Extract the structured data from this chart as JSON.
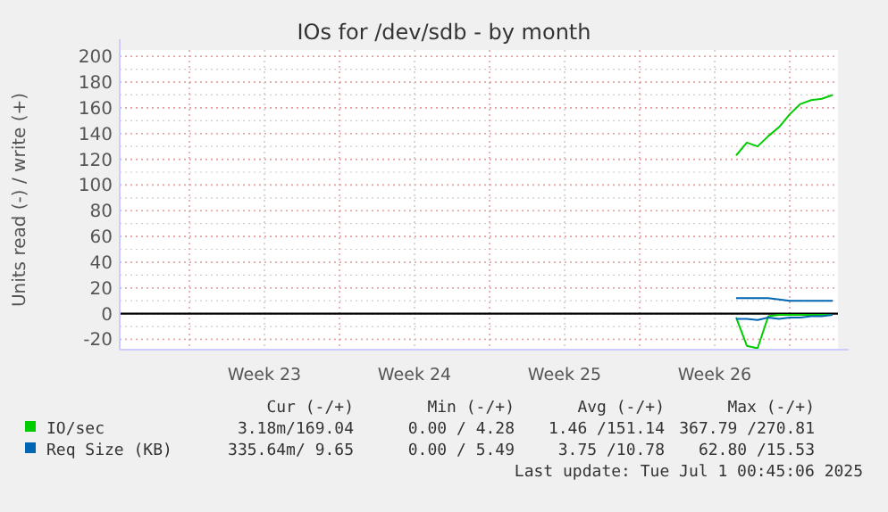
{
  "chart_data": {
    "type": "line",
    "title": "IOs for /dev/sdb - by month",
    "ylabel": "Units read (-) / write (+)",
    "categories": [
      null,
      null,
      null,
      null,
      null,
      null,
      null,
      null,
      null,
      null,
      null,
      null,
      null,
      "Week 23",
      null,
      null,
      null,
      null,
      null,
      null,
      null,
      null,
      null,
      null,
      null,
      null,
      null,
      "Week 24",
      null,
      null,
      null,
      null,
      null,
      null,
      null,
      null,
      null,
      null,
      null,
      null,
      null,
      "Week 25",
      null,
      null,
      null,
      null,
      null,
      null,
      null,
      null,
      null,
      null,
      null,
      null,
      null,
      "Week 26",
      null,
      null,
      null,
      null,
      null,
      null,
      null,
      null,
      null,
      null,
      null
    ],
    "ylim": [
      -28,
      205
    ],
    "yticks": [
      -20,
      0,
      20,
      40,
      60,
      80,
      100,
      120,
      140,
      160,
      180,
      200
    ],
    "grid": true,
    "legend": "bottom left",
    "line_style": "solid",
    "ref_lines": [
      {
        "axis": "y",
        "value": 0,
        "color": "#000000"
      }
    ],
    "series": [
      {
        "name": "IO/sec",
        "color": "#00cc00",
        "values": [
          null,
          null,
          null,
          null,
          null,
          null,
          null,
          null,
          null,
          null,
          null,
          null,
          null,
          null,
          null,
          null,
          null,
          null,
          null,
          null,
          null,
          null,
          null,
          null,
          null,
          null,
          null,
          null,
          null,
          null,
          null,
          null,
          null,
          null,
          null,
          null,
          null,
          null,
          null,
          null,
          null,
          null,
          null,
          null,
          null,
          null,
          null,
          null,
          null,
          null,
          null,
          null,
          null,
          null,
          null,
          null,
          null,
          123,
          133,
          130,
          138,
          145,
          155,
          163,
          166,
          167,
          170
        ]
      },
      {
        "color": "#00cc00",
        "values": [
          null,
          null,
          null,
          null,
          null,
          null,
          null,
          null,
          null,
          null,
          null,
          null,
          null,
          null,
          null,
          null,
          null,
          null,
          null,
          null,
          null,
          null,
          null,
          null,
          null,
          null,
          null,
          null,
          null,
          null,
          null,
          null,
          null,
          null,
          null,
          null,
          null,
          null,
          null,
          null,
          null,
          null,
          null,
          null,
          null,
          null,
          null,
          null,
          null,
          null,
          null,
          null,
          null,
          null,
          null,
          null,
          null,
          -3,
          -25,
          -27,
          -2,
          -1,
          -1,
          -1,
          -1,
          -1,
          -1
        ]
      },
      {
        "name": "Req Size (KB)",
        "color": "#0066b3",
        "values": [
          null,
          null,
          null,
          null,
          null,
          null,
          null,
          null,
          null,
          null,
          null,
          null,
          null,
          null,
          null,
          null,
          null,
          null,
          null,
          null,
          null,
          null,
          null,
          null,
          null,
          null,
          null,
          null,
          null,
          null,
          null,
          null,
          null,
          null,
          null,
          null,
          null,
          null,
          null,
          null,
          null,
          null,
          null,
          null,
          null,
          null,
          null,
          null,
          null,
          null,
          null,
          null,
          null,
          null,
          null,
          null,
          null,
          12,
          12,
          12,
          12,
          11,
          10,
          10,
          10,
          10,
          10
        ]
      },
      {
        "color": "#0066b3",
        "values": [
          null,
          null,
          null,
          null,
          null,
          null,
          null,
          null,
          null,
          null,
          null,
          null,
          null,
          null,
          null,
          null,
          null,
          null,
          null,
          null,
          null,
          null,
          null,
          null,
          null,
          null,
          null,
          null,
          null,
          null,
          null,
          null,
          null,
          null,
          null,
          null,
          null,
          null,
          null,
          null,
          null,
          null,
          null,
          null,
          null,
          null,
          null,
          null,
          null,
          null,
          null,
          null,
          null,
          null,
          null,
          null,
          null,
          -4,
          -4,
          -5,
          -3,
          -4,
          -3,
          -3,
          -2,
          -2,
          -1
        ]
      }
    ],
    "annotations": [
      "Cur (-/+)",
      "Min (-/+)",
      "Avg (-/+)",
      "Max (-/+)",
      "3.18m/169.04",
      "0.00 / 4.28",
      "1.46 /151.14",
      "367.79 /270.81",
      "335.64m/ 9.65",
      "0.00 / 5.49",
      "3.75 /10.78",
      "62.80 /15.53",
      "Last update: Tue Jul  1 00:45:06 2025"
    ]
  }
}
